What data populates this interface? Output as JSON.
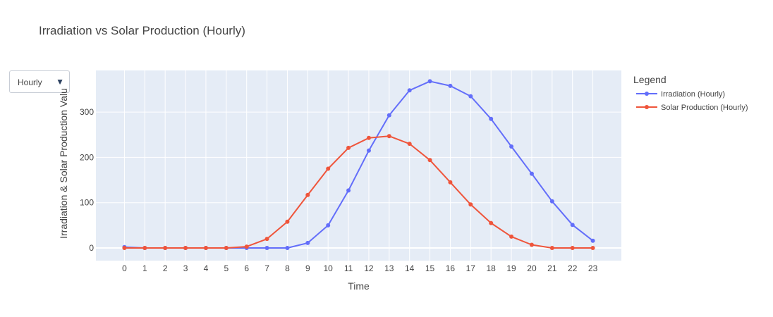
{
  "title": "Irradiation vs Solar Production (Hourly)",
  "dropdown": {
    "selected": "Hourly"
  },
  "colors": {
    "plot_bg": "#e5ecf6",
    "grid": "#ffffff",
    "irradiation": "#636efa",
    "solar": "#ef553b",
    "text": "#444444"
  },
  "chart_data": {
    "type": "line",
    "title": "Irradiation vs Solar Production (Hourly)",
    "xlabel": "Time",
    "ylabel": "Irradiation & Solar Production Valu",
    "x": [
      0,
      1,
      2,
      3,
      4,
      5,
      6,
      7,
      8,
      9,
      10,
      11,
      12,
      13,
      14,
      15,
      16,
      17,
      18,
      19,
      20,
      21,
      22,
      23
    ],
    "xlim": [
      -1.4,
      24.4
    ],
    "ylim": [
      -28,
      392
    ],
    "yticks": [
      0,
      100,
      200,
      300
    ],
    "grid": true,
    "legend": {
      "title": "Legend",
      "position": "top-right"
    },
    "series": [
      {
        "name": "Irradiation (Hourly)",
        "color": "#636efa",
        "values": [
          2,
          0,
          0,
          0,
          0,
          0,
          0,
          0,
          0,
          11,
          50,
          127,
          215,
          293,
          348,
          368,
          358,
          335,
          285,
          224,
          164,
          103,
          51,
          16
        ]
      },
      {
        "name": "Solar Production (Hourly)",
        "color": "#ef553b",
        "values": [
          0,
          0,
          0,
          0,
          0,
          0,
          3,
          20,
          58,
          117,
          175,
          221,
          243,
          247,
          230,
          194,
          145,
          96,
          55,
          25,
          7,
          0,
          0,
          0
        ]
      }
    ]
  }
}
